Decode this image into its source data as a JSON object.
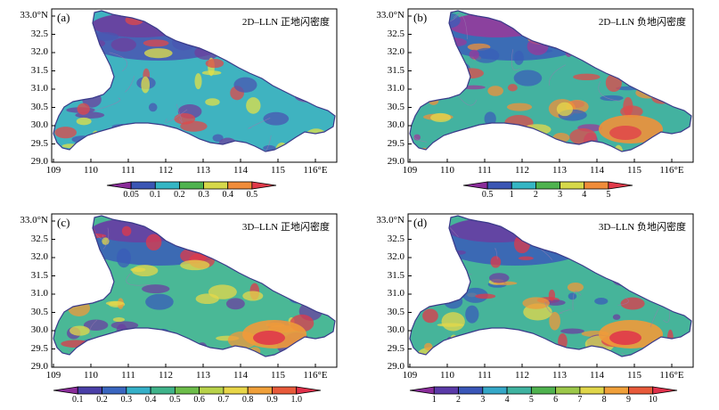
{
  "panels": [
    {
      "letter": "(a)",
      "title": "2D–LLN 正地闪密度",
      "y_ticks": [
        "33.0°N",
        "32.5",
        "32.0",
        "31.5",
        "31.0",
        "30.5",
        "30.0",
        "29.5",
        "29.0"
      ],
      "x_ticks": [
        "109",
        "110",
        "111",
        "112",
        "113",
        "114",
        "115",
        "116°E"
      ],
      "colorbar_labels": [
        "0.05",
        "0.1",
        "0.2",
        "0.3",
        "0.4",
        "0.5"
      ],
      "colorbar_colors": [
        "#8a2c9a",
        "#3b56b4",
        "#35b6c4",
        "#4fb34f",
        "#d6d84a",
        "#f08c3a",
        "#e03a4a"
      ],
      "dominant": "#3fb3c0",
      "accents": [
        "#4a55b2",
        "#6d3f9e",
        "#e2e048",
        "#e0484a"
      ]
    },
    {
      "letter": "(b)",
      "title": "2D–LLN 负地闪密度",
      "y_ticks": [
        "33.0°N",
        "32.5",
        "32.0",
        "31.5",
        "31.0",
        "30.5",
        "30.0",
        "29.5",
        "29.0"
      ],
      "x_ticks": [
        "109",
        "110",
        "111",
        "112",
        "113",
        "114",
        "115",
        "116°E"
      ],
      "colorbar_labels": [
        "0.5",
        "1",
        "2",
        "3",
        "4",
        "5"
      ],
      "colorbar_colors": [
        "#8a2c9a",
        "#3b56b4",
        "#35b6c4",
        "#4fb34f",
        "#d6d84a",
        "#f08c3a",
        "#e03a4a"
      ],
      "dominant": "#43b2a0",
      "accents": [
        "#3a5fb8",
        "#9a3a9a",
        "#e6d84a",
        "#f0903a",
        "#e04a4a"
      ]
    },
    {
      "letter": "(c)",
      "title": "3D–LLN 正地闪密度",
      "y_ticks": [
        "33.0°N",
        "32.5",
        "32.0",
        "31.5",
        "31.0",
        "30.5",
        "30.0",
        "29.5",
        "29.0"
      ],
      "x_ticks": [
        "109",
        "110",
        "111",
        "112",
        "113",
        "114",
        "115",
        "116°E"
      ],
      "colorbar_labels": [
        "0.1",
        "0.2",
        "0.3",
        "0.4",
        "0.5",
        "0.6",
        "0.7",
        "0.8",
        "0.9",
        "1.0"
      ],
      "colorbar_colors": [
        "#8a2c9a",
        "#4a3fa8",
        "#3a66c0",
        "#35b0c8",
        "#3fb38a",
        "#6cbd4a",
        "#b8d24a",
        "#e8d648",
        "#f0a03a",
        "#e85a3a",
        "#e0304a"
      ],
      "dominant": "#4ab896",
      "accents": [
        "#3a5cb8",
        "#6b3fa0",
        "#e6d84a",
        "#f09a3a",
        "#e03a4a"
      ]
    },
    {
      "letter": "(d)",
      "title": "3D–LLN 负地闪密度",
      "y_ticks": [
        "33.0°N",
        "32.5",
        "32.0",
        "31.5",
        "31.0",
        "30.5",
        "30.0",
        "29.5",
        "29.0"
      ],
      "x_ticks": [
        "109",
        "110",
        "111",
        "112",
        "113",
        "114",
        "115",
        "116°E"
      ],
      "colorbar_labels": [
        "1",
        "2",
        "3",
        "4",
        "5",
        "6",
        "7",
        "8",
        "9",
        "10"
      ],
      "colorbar_colors": [
        "#8a2c9a",
        "#5a3aa8",
        "#3a56b8",
        "#35a8c8",
        "#3fb3a0",
        "#4fb34f",
        "#9cc84a",
        "#e0d64a",
        "#f0a03a",
        "#e85a3a",
        "#e0304a"
      ],
      "dominant": "#46b49a",
      "accents": [
        "#3a5cb8",
        "#6b3fa0",
        "#e6d84a",
        "#f09a3a",
        "#e03a4a"
      ]
    }
  ]
}
